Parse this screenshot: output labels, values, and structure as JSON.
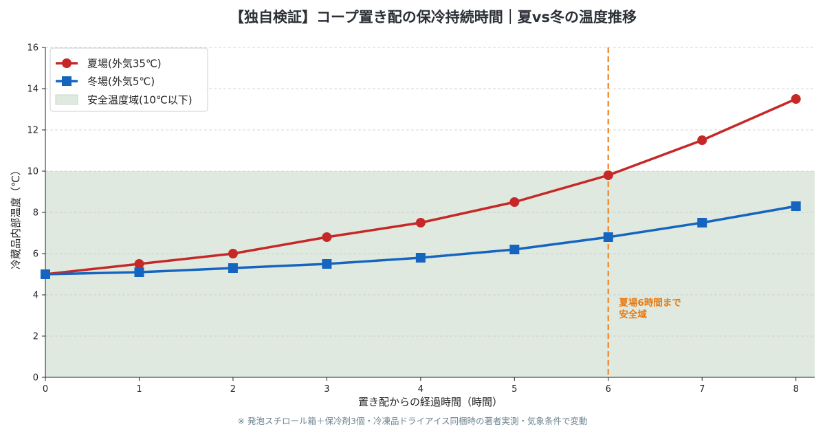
{
  "chart_data": {
    "type": "line",
    "title": "【独自検証】コープ置き配の保冷持続時間｜夏vs冬の温度推移",
    "xlabel": "置き配からの経過時間（時間）",
    "ylabel": "冷蔵品内部温度（℃）",
    "x": [
      0,
      1,
      2,
      3,
      4,
      5,
      6,
      7,
      8
    ],
    "xlim": [
      0,
      8.2
    ],
    "ylim": [
      0,
      16
    ],
    "x_ticks": [
      "0",
      "1",
      "2",
      "3",
      "4",
      "5",
      "6",
      "7",
      "8"
    ],
    "y_ticks": [
      "0",
      "2",
      "4",
      "6",
      "8",
      "10",
      "12",
      "14",
      "16"
    ],
    "grid": "horizontal dashed",
    "legend_position": "top-left",
    "series": [
      {
        "name": "夏場(外気35℃)",
        "color": "#c62828",
        "marker": "circle",
        "values": [
          5.0,
          5.5,
          6.0,
          6.8,
          7.5,
          8.5,
          9.8,
          11.5,
          13.5
        ]
      },
      {
        "name": "冬場(外気5℃)",
        "color": "#1565c0",
        "marker": "square",
        "values": [
          5.0,
          5.1,
          5.3,
          5.5,
          5.8,
          6.2,
          6.8,
          7.5,
          8.3
        ]
      }
    ],
    "safe_zone": {
      "label": "安全温度域(10℃以下)",
      "y_min": 0,
      "y_max": 10,
      "color": "#dfe9df"
    },
    "vline": {
      "x": 6,
      "color": "#f0913a"
    },
    "annotation": {
      "lines": [
        "夏場6時間まで",
        "安全域"
      ],
      "x": 6.1,
      "y": 3.5,
      "color": "#e8780f"
    },
    "footnote": "※ 発泡スチロール箱＋保冷剤3個・冷凍品ドライアイス同梱時の著者実測・気象条件で変動"
  }
}
